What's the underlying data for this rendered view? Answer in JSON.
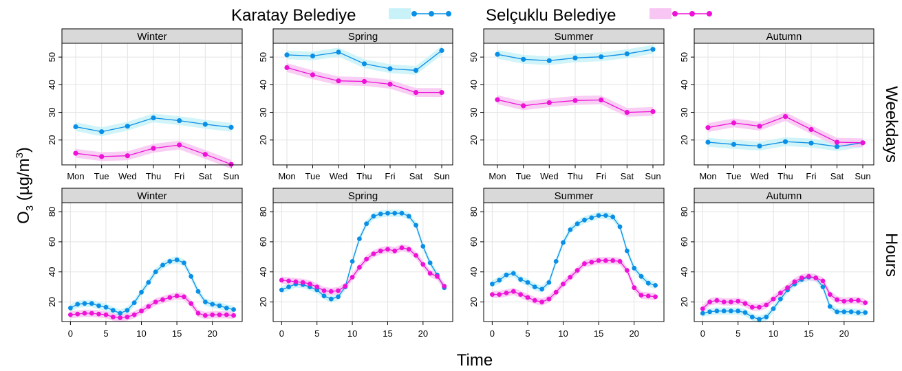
{
  "legend": {
    "items": [
      {
        "label": "Karatay Belediye",
        "color": "#0a8fe6",
        "band": "#c9f2f8"
      },
      {
        "label": "Selçuklu Belediye",
        "color": "#ee11d6",
        "band": "#f8c6f2"
      }
    ]
  },
  "axis": {
    "ylabel_main": "O",
    "ylabel_sub": "3",
    "ylabel_unit": " (µg/m",
    "ylabel_sup": "3",
    "ylabel_close": ")",
    "xlabel": "Time"
  },
  "rows": [
    {
      "label": "Weekdays",
      "type": "weekday",
      "ylim": [
        11,
        55
      ],
      "yticks": [
        20,
        30,
        40,
        50
      ],
      "xticks": [
        "Mon",
        "Tue",
        "Wed",
        "Thu",
        "Fri",
        "Sat",
        "Sun"
      ]
    },
    {
      "label": "Hours",
      "type": "hour",
      "ylim": [
        7,
        86
      ],
      "yticks": [
        20,
        40,
        60,
        80
      ],
      "xticks": [
        "0",
        "5",
        "10",
        "15",
        "20"
      ]
    }
  ],
  "chart_data": [
    {
      "type": "line",
      "title": "Winter",
      "panel": "Weekdays",
      "categories": [
        "Mon",
        "Tue",
        "Wed",
        "Thu",
        "Fri",
        "Sat",
        "Sun"
      ],
      "series": [
        {
          "name": "Karatay Belediye",
          "values": [
            24.8,
            23.0,
            25.0,
            28.0,
            27.0,
            25.7,
            24.6
          ]
        },
        {
          "name": "Selçuklu Belediye",
          "values": [
            15.2,
            14.0,
            14.3,
            17.0,
            18.2,
            14.8,
            11.2
          ]
        }
      ]
    },
    {
      "type": "line",
      "title": "Spring",
      "panel": "Weekdays",
      "categories": [
        "Mon",
        "Tue",
        "Wed",
        "Thu",
        "Fri",
        "Sat",
        "Sun"
      ],
      "series": [
        {
          "name": "Karatay Belediye",
          "values": [
            50.8,
            50.4,
            51.8,
            47.6,
            45.8,
            45.2,
            52.4
          ]
        },
        {
          "name": "Selçuklu Belediye",
          "values": [
            46.2,
            43.6,
            41.4,
            41.2,
            40.2,
            37.2,
            37.2
          ]
        }
      ]
    },
    {
      "type": "line",
      "title": "Summer",
      "panel": "Weekdays",
      "categories": [
        "Mon",
        "Tue",
        "Wed",
        "Thu",
        "Fri",
        "Sat",
        "Sun"
      ],
      "series": [
        {
          "name": "Karatay Belediye",
          "values": [
            51.0,
            49.2,
            48.7,
            49.7,
            50.1,
            51.2,
            52.8
          ]
        },
        {
          "name": "Selçuklu Belediye",
          "values": [
            34.6,
            32.4,
            33.5,
            34.3,
            34.5,
            30.0,
            30.3
          ]
        }
      ]
    },
    {
      "type": "line",
      "title": "Autumn",
      "panel": "Weekdays",
      "categories": [
        "Mon",
        "Tue",
        "Wed",
        "Thu",
        "Fri",
        "Sat",
        "Sun"
      ],
      "series": [
        {
          "name": "Karatay Belediye",
          "values": [
            19.2,
            18.4,
            17.8,
            19.4,
            18.9,
            17.6,
            19.0
          ]
        },
        {
          "name": "Selçuklu Belediye",
          "values": [
            24.5,
            26.2,
            25.0,
            28.5,
            23.8,
            19.2,
            19.0
          ]
        }
      ]
    },
    {
      "type": "line",
      "title": "Winter",
      "panel": "Hours",
      "x": [
        0,
        1,
        2,
        3,
        4,
        5,
        6,
        7,
        8,
        9,
        10,
        11,
        12,
        13,
        14,
        15,
        16,
        17,
        18,
        19,
        20,
        21,
        22,
        23
      ],
      "series": [
        {
          "name": "Karatay Belediye",
          "values": [
            16,
            18.5,
            19,
            19,
            17.5,
            16.5,
            14.5,
            12.5,
            14.5,
            19.5,
            26.5,
            33,
            40,
            44.5,
            47,
            48,
            46,
            37,
            27,
            20,
            18.5,
            17.5,
            16,
            15
          ]
        },
        {
          "name": "Selçuklu Belediye",
          "values": [
            11.5,
            12,
            12.5,
            12.5,
            12,
            11.5,
            10,
            9.5,
            10,
            11.5,
            14,
            17,
            20,
            21.5,
            23,
            24,
            23.5,
            19,
            12.5,
            11,
            11.5,
            11.5,
            11.5,
            11
          ]
        }
      ]
    },
    {
      "type": "line",
      "title": "Spring",
      "panel": "Hours",
      "x": [
        0,
        1,
        2,
        3,
        4,
        5,
        6,
        7,
        8,
        9,
        10,
        11,
        12,
        13,
        14,
        15,
        16,
        17,
        18,
        19,
        20,
        21,
        22,
        23
      ],
      "series": [
        {
          "name": "Karatay Belediye",
          "values": [
            28,
            30,
            32,
            31.5,
            30,
            28,
            24,
            22,
            23.5,
            30,
            47,
            62,
            72,
            77,
            78.5,
            79,
            79,
            79,
            77,
            71,
            57,
            46,
            38,
            29.5
          ]
        },
        {
          "name": "Selçuklu Belediye",
          "values": [
            34.5,
            34,
            33.5,
            33,
            32,
            30,
            27.5,
            27,
            27.5,
            30.5,
            36.5,
            43,
            48.5,
            52,
            54,
            55,
            54,
            56,
            55,
            51,
            45,
            39,
            37,
            30.5
          ]
        }
      ]
    },
    {
      "type": "line",
      "title": "Summer",
      "panel": "Hours",
      "x": [
        0,
        1,
        2,
        3,
        4,
        5,
        6,
        7,
        8,
        9,
        10,
        11,
        12,
        13,
        14,
        15,
        16,
        17,
        18,
        19,
        20,
        21,
        22,
        23
      ],
      "series": [
        {
          "name": "Karatay Belediye",
          "values": [
            32,
            34.5,
            38,
            39,
            35,
            33,
            30,
            28.5,
            33,
            47,
            59.5,
            68,
            72,
            74.5,
            76,
            77.5,
            77.5,
            76.5,
            70,
            54,
            42.5,
            37,
            32.5,
            31
          ]
        },
        {
          "name": "Selçuklu Belediye",
          "values": [
            25,
            25,
            26,
            27,
            25,
            23,
            21,
            20,
            22,
            26.5,
            32,
            36.5,
            41,
            45.5,
            46.5,
            47.5,
            47.5,
            47.5,
            47,
            41,
            29.5,
            24.5,
            24,
            23.5
          ]
        }
      ]
    },
    {
      "type": "line",
      "title": "Autumn",
      "panel": "Hours",
      "x": [
        0,
        1,
        2,
        3,
        4,
        5,
        6,
        7,
        8,
        9,
        10,
        11,
        12,
        13,
        14,
        15,
        16,
        17,
        18,
        19,
        20,
        21,
        22,
        23
      ],
      "series": [
        {
          "name": "Karatay Belediye",
          "values": [
            12.5,
            13.5,
            14,
            14,
            14,
            14,
            13,
            10,
            8.5,
            10,
            15.5,
            22,
            28,
            32,
            35,
            36.5,
            36,
            30,
            17,
            13.5,
            13.5,
            13.5,
            13,
            13
          ]
        },
        {
          "name": "Selçuklu Belediye",
          "values": [
            15.5,
            20,
            21,
            20,
            20,
            20.5,
            19,
            16.5,
            16.5,
            18,
            22,
            26,
            29.5,
            33.5,
            36,
            37,
            36,
            34,
            25,
            21.5,
            20.5,
            21,
            21,
            19.5
          ]
        }
      ]
    }
  ]
}
